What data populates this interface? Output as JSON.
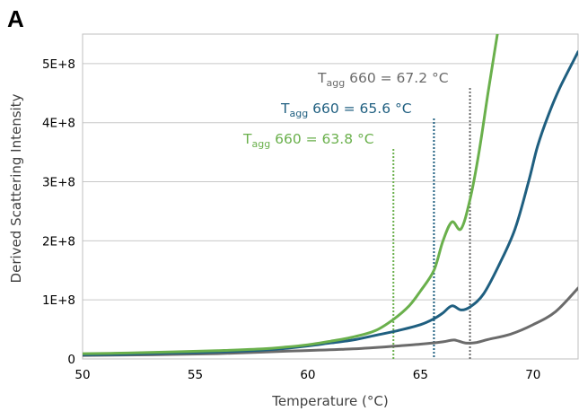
{
  "panel_label": "A",
  "chart_data": {
    "type": "line",
    "xlabel": "Temperature (°C)",
    "ylabel": "Derived Scattering Intensity",
    "xlim": [
      50,
      72
    ],
    "ylim": [
      0,
      550000000
    ],
    "x_ticks": [
      50,
      55,
      60,
      65,
      70
    ],
    "y_ticks": [
      {
        "value": 0,
        "label": "0"
      },
      {
        "value": 100000000,
        "label": "1E+8"
      },
      {
        "value": 200000000,
        "label": "2E+8"
      },
      {
        "value": 300000000,
        "label": "3E+8"
      },
      {
        "value": 400000000,
        "label": "4E+8"
      },
      {
        "value": 500000000,
        "label": "5E+8"
      }
    ],
    "grid": "horizontal",
    "series": [
      {
        "color": "#6ab04c",
        "points": [
          [
            50,
            9000000
          ],
          [
            52,
            10000000
          ],
          [
            54,
            12000000
          ],
          [
            56,
            14000000
          ],
          [
            58,
            17000000
          ],
          [
            59,
            20000000
          ],
          [
            60,
            24000000
          ],
          [
            61,
            30000000
          ],
          [
            62,
            37000000
          ],
          [
            63,
            48000000
          ],
          [
            63.8,
            67000000
          ],
          [
            64.5,
            90000000
          ],
          [
            65,
            115000000
          ],
          [
            65.6,
            150000000
          ],
          [
            66,
            200000000
          ],
          [
            66.4,
            232000000
          ],
          [
            66.8,
            220000000
          ],
          [
            67.2,
            270000000
          ],
          [
            67.6,
            350000000
          ],
          [
            68,
            450000000
          ],
          [
            68.5,
            570000000
          ]
        ]
      },
      {
        "color": "#1f5f80",
        "points": [
          [
            50,
            7000000
          ],
          [
            52,
            8000000
          ],
          [
            54,
            10000000
          ],
          [
            56,
            12000000
          ],
          [
            58,
            15000000
          ],
          [
            59,
            18000000
          ],
          [
            60,
            22000000
          ],
          [
            61,
            27000000
          ],
          [
            62,
            32000000
          ],
          [
            63,
            40000000
          ],
          [
            64,
            48000000
          ],
          [
            65,
            58000000
          ],
          [
            65.6,
            68000000
          ],
          [
            66,
            78000000
          ],
          [
            66.4,
            90000000
          ],
          [
            66.8,
            83000000
          ],
          [
            67.2,
            88000000
          ],
          [
            67.8,
            110000000
          ],
          [
            68.5,
            160000000
          ],
          [
            69.2,
            220000000
          ],
          [
            69.8,
            300000000
          ],
          [
            70.2,
            360000000
          ],
          [
            70.7,
            415000000
          ],
          [
            71.2,
            460000000
          ],
          [
            72,
            520000000
          ]
        ]
      },
      {
        "color": "#6b6b6b",
        "points": [
          [
            50,
            6000000
          ],
          [
            53,
            7000000
          ],
          [
            56,
            9000000
          ],
          [
            59,
            13000000
          ],
          [
            62,
            17000000
          ],
          [
            64,
            22000000
          ],
          [
            65,
            25000000
          ],
          [
            66,
            29000000
          ],
          [
            66.5,
            32000000
          ],
          [
            67,
            27000000
          ],
          [
            67.5,
            28000000
          ],
          [
            68,
            33000000
          ],
          [
            69,
            42000000
          ],
          [
            70,
            58000000
          ],
          [
            71,
            80000000
          ],
          [
            72,
            120000000
          ]
        ]
      }
    ],
    "annotations": [
      {
        "label_base": "T",
        "label_sub": "agg",
        "label_rest": " 660 = 67.2 °C",
        "color": "#6b6b6b",
        "x": 67.2
      },
      {
        "label_base": "T",
        "label_sub": "agg",
        "label_rest": " 660 = 65.6 °C",
        "color": "#1f5f80",
        "x": 65.6
      },
      {
        "label_base": "T",
        "label_sub": "agg",
        "label_rest": " 660 = 63.8 °C",
        "color": "#6ab04c",
        "x": 63.8
      }
    ]
  }
}
